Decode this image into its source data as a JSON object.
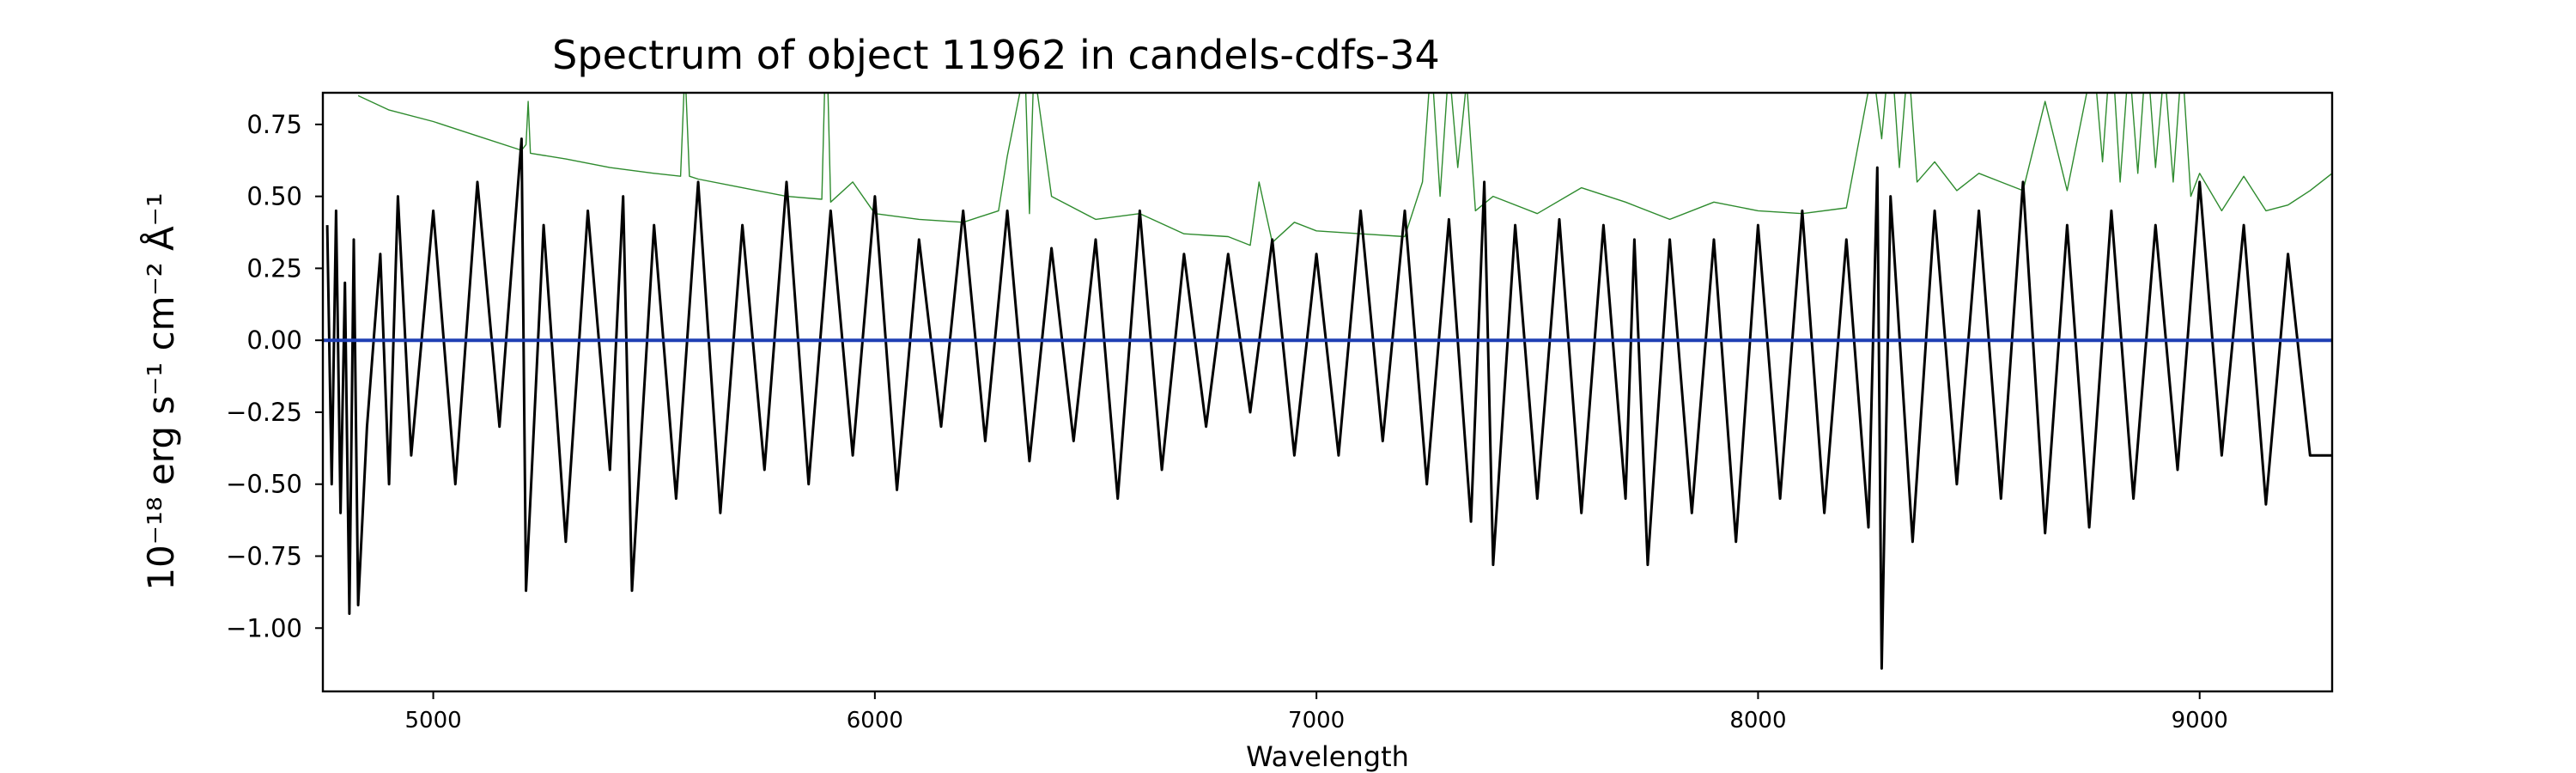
{
  "chart_data": {
    "type": "line",
    "title": "Spectrum of object 11962 in candels-cdfs-34",
    "xlabel": "Wavelength",
    "ylabel": "10⁻¹⁸ erg s⁻¹ cm⁻² Å⁻¹",
    "xlim": [
      4750,
      9300
    ],
    "ylim": [
      -1.22,
      0.86
    ],
    "x_ticks": [
      5000,
      6000,
      7000,
      8000,
      9000
    ],
    "x_tick_labels": [
      "5000",
      "6000",
      "7000",
      "8000",
      "9000"
    ],
    "y_ticks": [
      0.75,
      0.5,
      0.25,
      0.0,
      -0.25,
      -0.5,
      -0.75,
      -1.0
    ],
    "y_tick_labels": [
      "0.75",
      "0.50",
      "0.25",
      "0.00",
      "−0.25",
      "−0.50",
      "−0.75",
      "−1.00"
    ],
    "grid": false,
    "legend": "none",
    "series": [
      {
        "role": "noise",
        "color": "#2e8b2e",
        "x": [
          4830,
          4900,
          5000,
          5100,
          5200,
          5210,
          5215,
          5220,
          5300,
          5400,
          5500,
          5560,
          5570,
          5580,
          5600,
          5700,
          5800,
          5880,
          5890,
          5900,
          5950,
          6000,
          6100,
          6200,
          6280,
          6300,
          6340,
          6350,
          6360,
          6400,
          6500,
          6600,
          6700,
          6800,
          6850,
          6870,
          6900,
          6950,
          7000,
          7100,
          7200,
          7240,
          7260,
          7280,
          7300,
          7320,
          7340,
          7360,
          7400,
          7500,
          7600,
          7700,
          7800,
          7900,
          8000,
          8100,
          8200,
          8260,
          8280,
          8300,
          8320,
          8340,
          8360,
          8400,
          8450,
          8500,
          8550,
          8600,
          8650,
          8700,
          8760,
          8780,
          8800,
          8820,
          8840,
          8860,
          8880,
          8900,
          8920,
          8940,
          8960,
          8980,
          9000,
          9050,
          9100,
          9150,
          9200,
          9250,
          9300
        ],
        "y": [
          0.85,
          0.8,
          0.76,
          0.71,
          0.66,
          0.68,
          0.83,
          0.65,
          0.63,
          0.6,
          0.58,
          0.57,
          0.95,
          0.57,
          0.56,
          0.53,
          0.5,
          0.49,
          1.1,
          0.48,
          0.55,
          0.44,
          0.42,
          0.41,
          0.45,
          0.64,
          0.95,
          0.44,
          0.95,
          0.5,
          0.42,
          0.44,
          0.37,
          0.36,
          0.33,
          0.55,
          0.34,
          0.41,
          0.38,
          0.37,
          0.36,
          0.55,
          0.98,
          0.5,
          0.96,
          0.6,
          0.9,
          0.45,
          0.5,
          0.44,
          0.53,
          0.48,
          0.42,
          0.48,
          0.45,
          0.44,
          0.46,
          0.95,
          0.7,
          1.05,
          0.6,
          0.98,
          0.55,
          0.62,
          0.52,
          0.58,
          0.55,
          0.52,
          0.83,
          0.52,
          0.98,
          0.62,
          1.05,
          0.55,
          0.98,
          0.58,
          1.02,
          0.6,
          0.95,
          0.55,
          0.98,
          0.5,
          0.58,
          0.45,
          0.57,
          0.45,
          0.47,
          0.52,
          0.58
        ]
      },
      {
        "role": "spectrum",
        "color": "#000000",
        "x": [
          4760,
          4770,
          4780,
          4790,
          4800,
          4810,
          4820,
          4830,
          4850,
          4880,
          4900,
          4920,
          4950,
          5000,
          5050,
          5100,
          5150,
          5200,
          5210,
          5250,
          5300,
          5350,
          5400,
          5430,
          5450,
          5500,
          5550,
          5600,
          5650,
          5700,
          5750,
          5800,
          5850,
          5900,
          5950,
          6000,
          6050,
          6100,
          6150,
          6200,
          6250,
          6300,
          6350,
          6400,
          6450,
          6500,
          6550,
          6600,
          6650,
          6700,
          6750,
          6800,
          6850,
          6900,
          6950,
          7000,
          7050,
          7100,
          7150,
          7200,
          7250,
          7300,
          7350,
          7380,
          7400,
          7450,
          7500,
          7550,
          7600,
          7650,
          7700,
          7720,
          7750,
          7800,
          7850,
          7900,
          7950,
          8000,
          8050,
          8100,
          8150,
          8200,
          8250,
          8270,
          8280,
          8300,
          8350,
          8400,
          8450,
          8500,
          8550,
          8600,
          8650,
          8700,
          8750,
          8800,
          8850,
          8900,
          8950,
          9000,
          9050,
          9100,
          9150,
          9200,
          9250,
          9300
        ],
        "y": [
          0.4,
          -0.5,
          0.45,
          -0.6,
          0.2,
          -0.95,
          0.35,
          -0.92,
          -0.3,
          0.3,
          -0.5,
          0.5,
          -0.4,
          0.45,
          -0.5,
          0.55,
          -0.3,
          0.7,
          -0.87,
          0.4,
          -0.7,
          0.45,
          -0.45,
          0.5,
          -0.87,
          0.4,
          -0.55,
          0.55,
          -0.6,
          0.4,
          -0.45,
          0.55,
          -0.5,
          0.45,
          -0.4,
          0.5,
          -0.52,
          0.35,
          -0.3,
          0.45,
          -0.35,
          0.45,
          -0.42,
          0.32,
          -0.35,
          0.35,
          -0.55,
          0.45,
          -0.45,
          0.3,
          -0.3,
          0.3,
          -0.25,
          0.35,
          -0.4,
          0.3,
          -0.4,
          0.45,
          -0.35,
          0.45,
          -0.5,
          0.42,
          -0.63,
          0.55,
          -0.78,
          0.4,
          -0.55,
          0.42,
          -0.6,
          0.4,
          -0.55,
          0.35,
          -0.78,
          0.35,
          -0.6,
          0.35,
          -0.7,
          0.4,
          -0.55,
          0.45,
          -0.6,
          0.35,
          -0.65,
          0.6,
          -1.14,
          0.5,
          -0.7,
          0.45,
          -0.5,
          0.45,
          -0.55,
          0.55,
          -0.67,
          0.4,
          -0.65,
          0.45,
          -0.55,
          0.4,
          -0.45,
          0.55,
          -0.4,
          0.4,
          -0.57,
          0.3,
          -0.4,
          -0.4
        ]
      },
      {
        "role": "model",
        "color": "#1f3fb4",
        "x": [
          4750,
          9300
        ],
        "y": [
          0.0,
          0.0
        ]
      }
    ]
  }
}
